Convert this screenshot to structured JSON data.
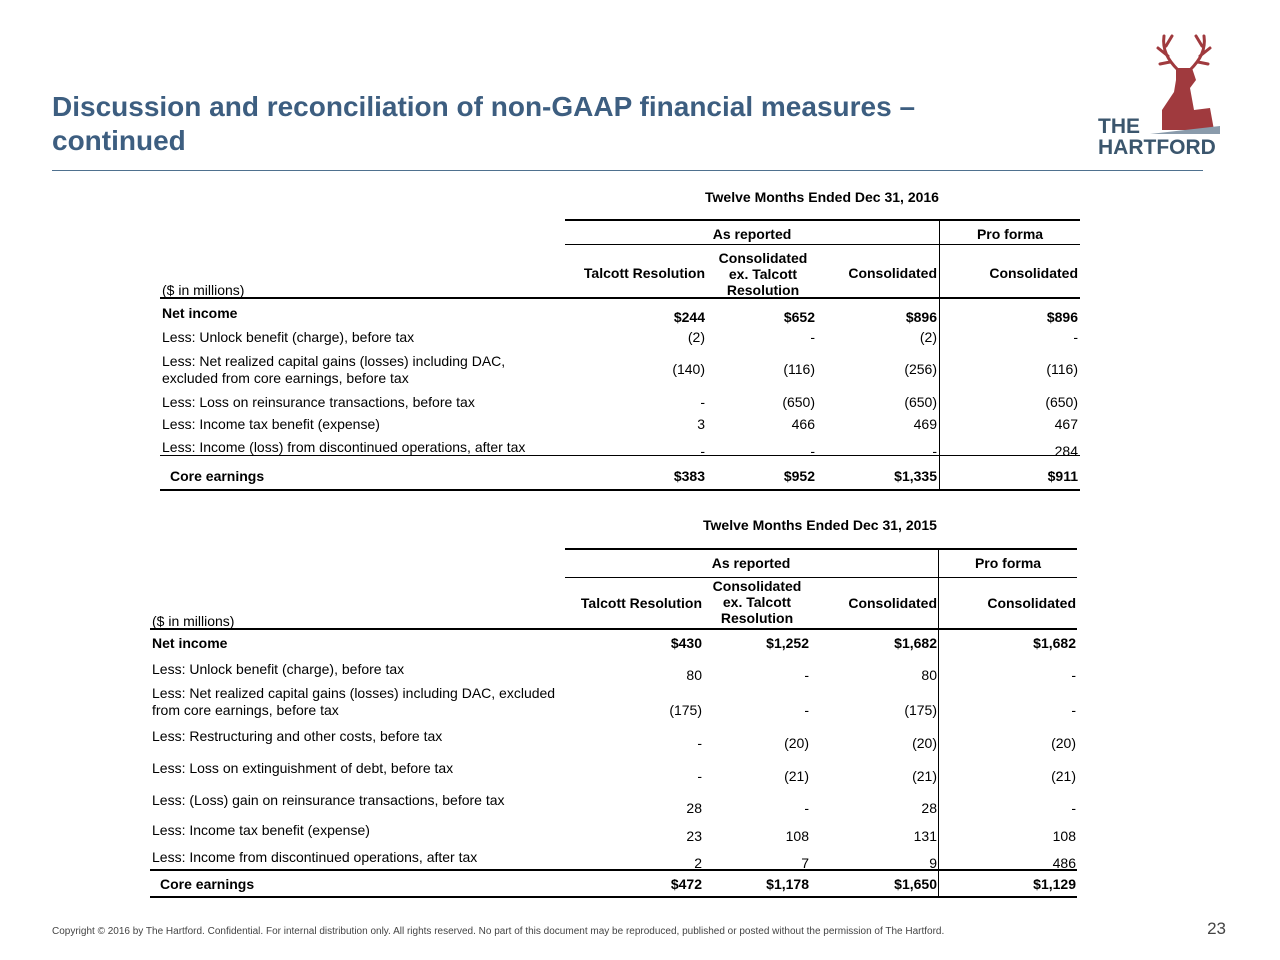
{
  "header": {
    "title": [
      "Discussion and reconciliation of non-GAAP financial measures –",
      "continued"
    ]
  },
  "logo": {
    "lines": [
      "THE",
      "HARTFORD"
    ]
  },
  "tables": [
    {
      "period": "Twelve Months Ended Dec 31, 2016",
      "groups": [
        "As reported",
        "Pro forma"
      ],
      "columns": [
        [
          "Talcott Resolution"
        ],
        [
          "Consolidated",
          "ex. Talcott",
          "Resolution"
        ],
        [
          "Consolidated"
        ],
        [
          "Consolidated"
        ]
      ],
      "unit": "($ in millions)",
      "rows": [
        {
          "label": [
            "Net income"
          ],
          "cells": [
            "$244",
            "$652",
            "$896",
            "$896"
          ]
        },
        {
          "label": [
            "Less: Unlock benefit (charge), before tax"
          ],
          "cells": [
            "(2)",
            "-",
            "(2)",
            "-"
          ]
        },
        {
          "label": [
            "Less: Net realized capital gains (losses) including DAC,",
            "excluded from core earnings, before tax"
          ],
          "cells": [
            "(140)",
            "(116)",
            "(256)",
            "(116)"
          ]
        },
        {
          "label": [
            "Less: Loss on reinsurance transactions, before tax"
          ],
          "cells": [
            "-",
            "(650)",
            "(650)",
            "(650)"
          ]
        },
        {
          "label": [
            "Less: Income tax benefit (expense)"
          ],
          "cells": [
            "3",
            "466",
            "469",
            "467"
          ]
        },
        {
          "label": [
            "Less: Income (loss) from discontinued operations, after tax"
          ],
          "cells": [
            "-",
            "-",
            "-",
            "284"
          ]
        },
        {
          "label": [
            "Core earnings"
          ],
          "cells": [
            "$383",
            "$952",
            "$1,335",
            "$911"
          ]
        }
      ]
    },
    {
      "period": "Twelve Months Ended Dec 31, 2015",
      "groups": [
        "As reported",
        "Pro forma"
      ],
      "columns": [
        [
          "Talcott Resolution"
        ],
        [
          "Consolidated",
          "ex. Talcott",
          "Resolution"
        ],
        [
          "Consolidated"
        ],
        [
          "Consolidated"
        ]
      ],
      "unit": "($ in millions)",
      "rows": [
        {
          "label": [
            "Net income"
          ],
          "cells": [
            "$430",
            "$1,252",
            "$1,682",
            "$1,682"
          ]
        },
        {
          "label": [
            "Less: Unlock benefit (charge), before tax"
          ],
          "cells": [
            "80",
            "-",
            "80",
            "-"
          ]
        },
        {
          "label": [
            "Less: Net realized capital gains (losses) including DAC, excluded",
            "from core earnings, before tax"
          ],
          "cells": [
            "(175)",
            "-",
            "(175)",
            "-"
          ]
        },
        {
          "label": [
            "Less: Restructuring and other costs, before tax"
          ],
          "cells": [
            "-",
            "(20)",
            "(20)",
            "(20)"
          ]
        },
        {
          "label": [
            "Less: Loss on extinguishment of debt, before tax"
          ],
          "cells": [
            "-",
            "(21)",
            "(21)",
            "(21)"
          ]
        },
        {
          "label": [
            "Less: (Loss) gain on reinsurance transactions, before tax"
          ],
          "cells": [
            "28",
            "-",
            "28",
            "-"
          ]
        },
        {
          "label": [
            "Less: Income tax benefit (expense)"
          ],
          "cells": [
            "23",
            "108",
            "131",
            "108"
          ]
        },
        {
          "label": [
            "Less: Income from discontinued operations, after tax"
          ],
          "cells": [
            "2",
            "7",
            "9",
            "486"
          ]
        },
        {
          "label": [
            "Core earnings"
          ],
          "cells": [
            "$472",
            "$1,178",
            "$1,650",
            "$1,129"
          ]
        }
      ]
    }
  ],
  "footer": {
    "copyright": "Copyright © 2016 by The Hartford. Confidential. For internal distribution only. All rights reserved. No part of this document may be reproduced, published or posted without the permission of The Hartford.",
    "page": "23"
  }
}
